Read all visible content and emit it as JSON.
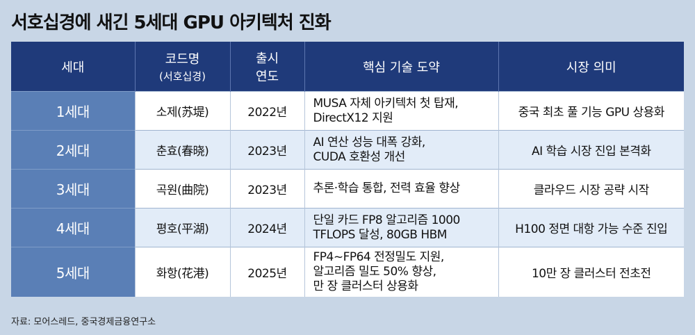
{
  "title": "서호십경에 새긴 5세대 GPU 아키텍처 진화",
  "headers": {
    "gen": "세대",
    "code": "코드명",
    "code_sub": "(서호십경)",
    "year_l1": "출시",
    "year_l2": "연도",
    "tech": "핵심 기술 도약",
    "market": "시장 의미"
  },
  "rows": [
    {
      "gen": "1세대",
      "code": "소제(苏堤)",
      "year": "2022년",
      "tech": [
        "MUSA 자체 아키텍처 첫 탑재,",
        "DirectX12 지원"
      ],
      "market": "중국 최초 풀 기능 GPU 상용화"
    },
    {
      "gen": "2세대",
      "code": "춘효(春晓)",
      "year": "2023년",
      "tech": [
        "AI 연산 성능 대폭 강화,",
        "CUDA 호환성 개선"
      ],
      "market": "AI 학습 시장 진입 본격화"
    },
    {
      "gen": "3세대",
      "code": "곡원(曲院)",
      "year": "2023년",
      "tech": [
        "추론·학습 통합, 전력 효율 향상"
      ],
      "market": "클라우드 시장 공략 시작"
    },
    {
      "gen": "4세대",
      "code": "평호(平湖)",
      "year": "2024년",
      "tech": [
        "단일 카드 FP8 알고리즘 1000",
        "TFLOPS 달성, 80GB HBM"
      ],
      "market": "H100 정면 대항 가능 수준 진입"
    },
    {
      "gen": "5세대",
      "code": "화항(花港)",
      "year": "2025년",
      "tech": [
        "FP4~FP64 전정밀도 지원,",
        "알고리즘 밀도 50% 향상,",
        "만 장 클러스터 상용화"
      ],
      "market": "10만 장 클러스터 전초전"
    }
  ],
  "source": "자료: 모어스레드, 중국경제금융연구소"
}
